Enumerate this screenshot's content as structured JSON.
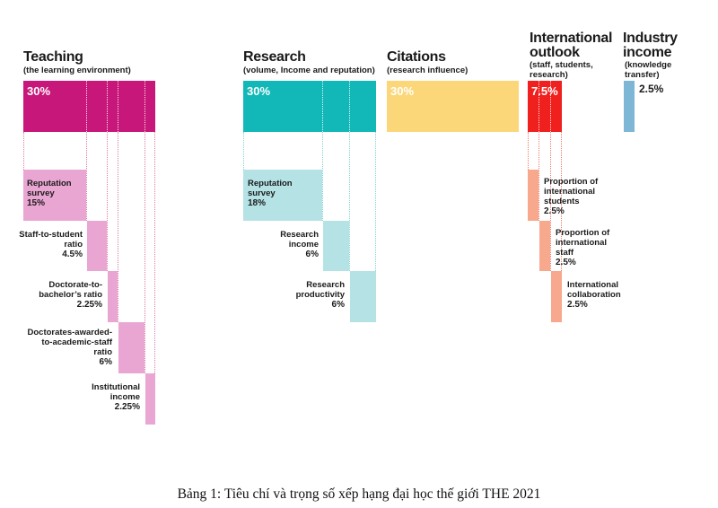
{
  "colors": {
    "teaching": "#c8177a",
    "teaching_light": "#eaa6d3",
    "research": "#12b8b8",
    "research_light": "#b5e3e5",
    "citations": "#fbd77a",
    "international": "#f0201e",
    "international_light": "#f8a88c",
    "industry": "#7eb6d6"
  },
  "teaching": {
    "title": "Teaching",
    "subtitle": "(the learning environment)",
    "weight": "30%",
    "items": [
      {
        "line1": "Reputation",
        "line2": "survey",
        "line3": "",
        "value": "15%"
      },
      {
        "line1": "Staff-to-student",
        "line2": "ratio",
        "line3": "",
        "value": "4.5%"
      },
      {
        "line1": "Doctorate-to-",
        "line2": "bachelor’s ratio",
        "line3": "",
        "value": "2.25%"
      },
      {
        "line1": "Doctorates-awarded-",
        "line2": "to-academic-staff",
        "line3": "ratio",
        "value": "6%"
      },
      {
        "line1": "Institutional",
        "line2": "income",
        "line3": "",
        "value": "2.25%"
      }
    ]
  },
  "research": {
    "title": "Research",
    "subtitle": "(volume, Income and reputation)",
    "weight": "30%",
    "items": [
      {
        "line1": "Reputation",
        "line2": "survey",
        "value": "18%"
      },
      {
        "line1": "Research",
        "line2": "income",
        "value": "6%"
      },
      {
        "line1": "Research",
        "line2": "productivity",
        "value": "6%"
      }
    ]
  },
  "citations": {
    "title": "Citations",
    "subtitle": "(research influence)",
    "weight": "30%"
  },
  "international": {
    "title_line1": "International",
    "title_line2": "outlook",
    "subtitle_line1": "(staff, students,",
    "subtitle_line2": "research)",
    "weight": "7.5%",
    "items": [
      {
        "line1": "Proportion of",
        "line2": "international",
        "line3": "students",
        "value": "2.5%"
      },
      {
        "line1": "Proportion of",
        "line2": "international",
        "line3": "staff",
        "value": "2.5%"
      },
      {
        "line1": "International",
        "line2": "collaboration",
        "line3": "",
        "value": "2.5%"
      }
    ]
  },
  "industry": {
    "title_line1": "Industry",
    "title_line2": "income",
    "subtitle_line1": "(knowledge",
    "subtitle_line2": "transfer)",
    "weight": "2.5%"
  },
  "caption": "Bảng 1: Tiêu chí và trọng số xếp hạng đại học thế giới THE 2021"
}
